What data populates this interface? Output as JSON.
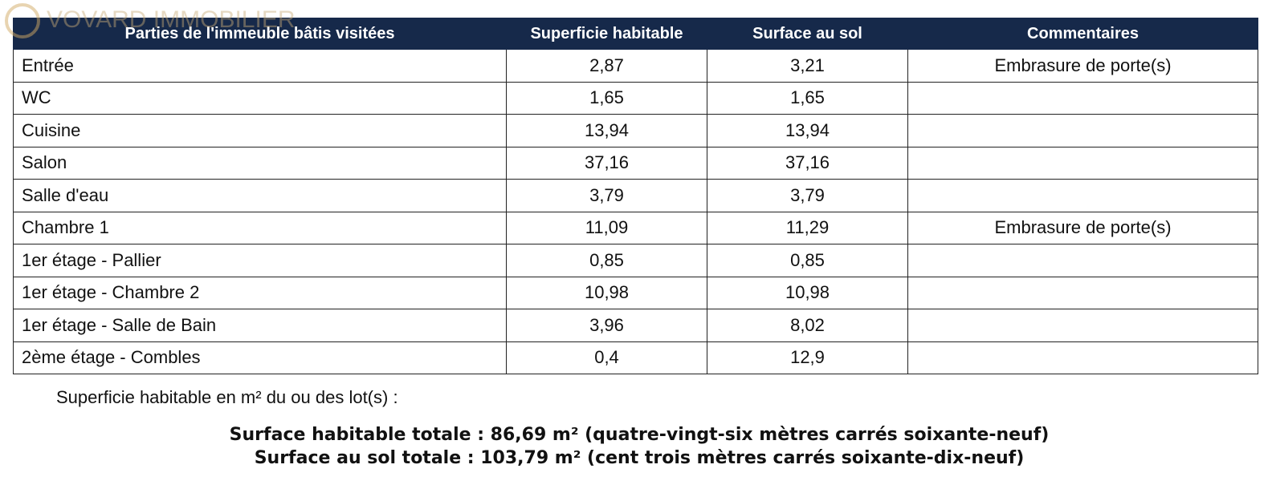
{
  "watermark": "VOVARD IMMOBILIER",
  "table": {
    "columns": [
      "Parties de l'immeuble bâtis visitées",
      "Superficie habitable",
      "Surface au sol",
      "Commentaires"
    ],
    "rows": [
      {
        "piece": "Entrée",
        "habitable": "2,87",
        "sol": "3,21",
        "commentaire": "Embrasure de porte(s)"
      },
      {
        "piece": "WC",
        "habitable": "1,65",
        "sol": "1,65"
      },
      {
        "piece": "Cuisine",
        "habitable": "13,94",
        "sol": "13,94"
      },
      {
        "piece": "Salon",
        "habitable": "37,16",
        "sol": "37,16"
      },
      {
        "piece": "Salle d'eau",
        "habitable": "3,79",
        "sol": "3,79"
      },
      {
        "piece": "Chambre 1",
        "habitable": "11,09",
        "sol": "11,29",
        "commentaire": "Embrasure de porte(s)"
      },
      {
        "piece": "1er étage - Pallier",
        "habitable": "0,85",
        "sol": "0,85"
      },
      {
        "piece": "1er étage - Chambre 2",
        "habitable": "10,98",
        "sol": "10,98"
      },
      {
        "piece": "1er étage - Salle de Bain",
        "habitable": "3,96",
        "sol": "8,02"
      },
      {
        "piece": "2ème étage - Combles",
        "habitable": "0,4",
        "sol": "12,9"
      }
    ]
  },
  "summary": {
    "intro": "Superficie habitable en m² du ou des lot(s) :",
    "total_habitable": "Surface habitable totale : 86,69 m² (quatre-vingt-six mètres carrés soixante-neuf)",
    "total_sol": "Surface au sol totale : 103,79 m² (cent trois mètres carrés soixante-dix-neuf)"
  }
}
